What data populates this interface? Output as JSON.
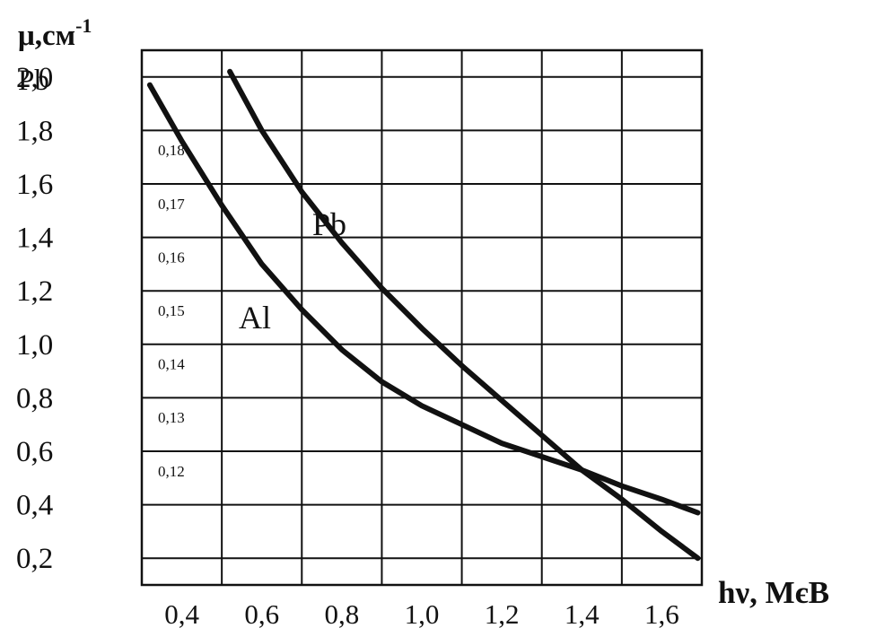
{
  "chart_data": {
    "type": "line",
    "xlabel": "hν, МєВ",
    "ylabel": "μ,см",
    "ylabel_superscript": "-1",
    "ylabel_sub": "Pb",
    "x_ticks": [
      "0,4",
      "0,6",
      "0,8",
      "1,0",
      "1,2",
      "1,4",
      "1,6"
    ],
    "y_ticks_pb": [
      "2,0",
      "1,8",
      "1,6",
      "1,4",
      "1,2",
      "1,0",
      "0,8",
      "0,6",
      "0,4",
      "0,2"
    ],
    "y_ticks_al": [
      "0,18",
      "0,17",
      "0,16",
      "0,15",
      "0,14",
      "0,13",
      "0,12"
    ],
    "xlim": [
      0.3,
      1.7
    ],
    "ylim": [
      0.1,
      2.1
    ],
    "grid": true,
    "series": [
      {
        "name": "Pb",
        "axis": "left",
        "x": [
          0.52,
          0.6,
          0.7,
          0.8,
          0.9,
          1.0,
          1.1,
          1.2,
          1.3,
          1.4,
          1.5,
          1.6,
          1.69
        ],
        "y": [
          2.02,
          1.8,
          1.57,
          1.38,
          1.21,
          1.06,
          0.92,
          0.79,
          0.66,
          0.53,
          0.42,
          0.3,
          0.2
        ]
      },
      {
        "name": "Al",
        "axis": "right-inner",
        "x": [
          0.32,
          0.4,
          0.5,
          0.6,
          0.7,
          0.8,
          0.9,
          1.0,
          1.1,
          1.2,
          1.3,
          1.4,
          1.5,
          1.6,
          1.69
        ],
        "y": [
          1.97,
          1.76,
          1.52,
          1.3,
          1.13,
          0.98,
          0.86,
          0.77,
          0.7,
          0.63,
          0.58,
          0.53,
          0.47,
          0.42,
          0.37
        ]
      }
    ]
  }
}
